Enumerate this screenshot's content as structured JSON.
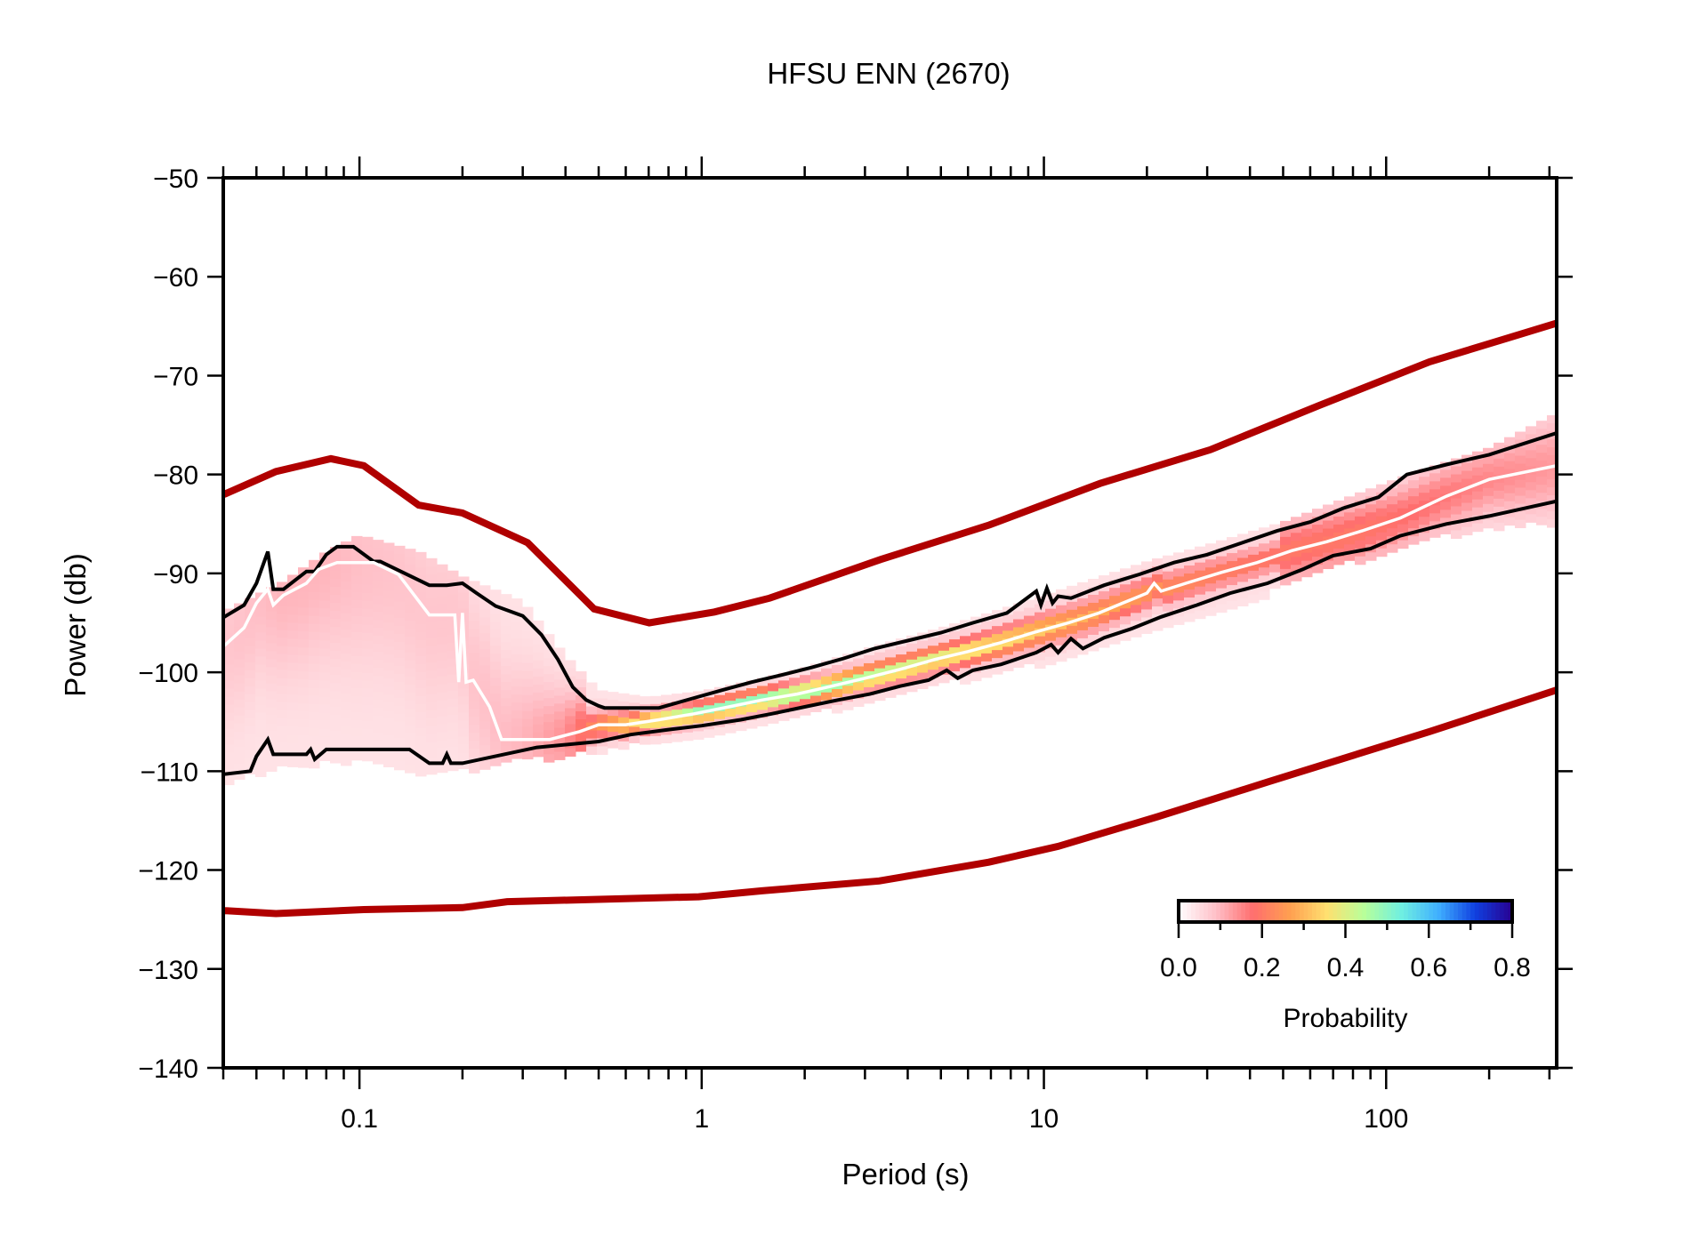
{
  "chart_data": {
    "type": "heatmap",
    "title": "HFSU ENN (2670)",
    "xlabel": "Period (s)",
    "ylabel": "Power (db)",
    "xscale": "log",
    "xlim": [
      0.04,
      315
    ],
    "ylim": [
      -140,
      -50
    ],
    "grid": false,
    "x_ticks": [
      {
        "value": 0.1,
        "label": "0.1"
      },
      {
        "value": 1,
        "label": "1"
      },
      {
        "value": 10,
        "label": "10"
      },
      {
        "value": 100,
        "label": "100"
      }
    ],
    "y_ticks": [
      {
        "value": -50,
        "label": "−50"
      },
      {
        "value": -60,
        "label": "−60"
      },
      {
        "value": -70,
        "label": "−70"
      },
      {
        "value": -80,
        "label": "−80"
      },
      {
        "value": -90,
        "label": "−90"
      },
      {
        "value": -100,
        "label": "−100"
      },
      {
        "value": -110,
        "label": "−110"
      },
      {
        "value": -120,
        "label": "−120"
      },
      {
        "value": -130,
        "label": "−130"
      },
      {
        "value": -140,
        "label": "−140"
      }
    ],
    "colorbar": {
      "label": "Probability",
      "range": [
        0.0,
        0.8
      ],
      "ticks": [
        {
          "value": 0.0,
          "label": "0.0"
        },
        {
          "value": 0.2,
          "label": "0.2"
        },
        {
          "value": 0.4,
          "label": "0.4"
        },
        {
          "value": 0.6,
          "label": "0.6"
        },
        {
          "value": 0.8,
          "label": "0.8"
        }
      ],
      "colors": [
        "#ffffff",
        "#ffc0c8",
        "#ff6e6e",
        "#ff9f50",
        "#ffe070",
        "#b8ff9a",
        "#70f0e0",
        "#40b0ff",
        "#1040e0",
        "#280090"
      ],
      "placement": "bottom-right"
    },
    "series": [
      {
        "name": "NHNM",
        "color": "#b00000",
        "x": [
          0.0403,
          0.057,
          0.0825,
          0.103,
          0.149,
          0.2,
          0.31,
          0.485,
          0.703,
          1.09,
          1.58,
          3.33,
          6.93,
          14.6,
          30.6,
          63.9,
          134,
          315
        ],
        "y": [
          -82.0,
          -79.7,
          -78.4,
          -79.1,
          -83.1,
          -83.9,
          -86.9,
          -93.6,
          -95.0,
          -93.9,
          -92.5,
          -88.6,
          -85.1,
          -80.9,
          -77.5,
          -73.0,
          -68.6,
          -64.7
        ]
      },
      {
        "name": "NLNM",
        "color": "#b00000",
        "x": [
          0.0403,
          0.057,
          0.103,
          0.2,
          0.27,
          0.98,
          1.5,
          3.3,
          6.9,
          11,
          21.5,
          45,
          134,
          315
        ],
        "y": [
          -124.1,
          -124.4,
          -124.0,
          -123.8,
          -123.2,
          -122.7,
          -122.1,
          -121.1,
          -119.2,
          -117.6,
          -114.6,
          -111.1,
          -106.0,
          -101.8
        ]
      },
      {
        "name": "upper-percentile",
        "color": "#000000",
        "x": [
          0.0403,
          0.046,
          0.05,
          0.054,
          0.056,
          0.06,
          0.07,
          0.074,
          0.08,
          0.086,
          0.096,
          0.11,
          0.115,
          0.16,
          0.18,
          0.2,
          0.22,
          0.25,
          0.3,
          0.34,
          0.38,
          0.42,
          0.46,
          0.5,
          0.52,
          0.62,
          0.75,
          0.95,
          1.15,
          1.4,
          1.7,
          2.1,
          2.6,
          3.2,
          4.0,
          5.0,
          6.2,
          7.8,
          9.5,
          9.8,
          10.2,
          10.6,
          11.0,
          12,
          15,
          19,
          24,
          30,
          38,
          48,
          60,
          75,
          95,
          115,
          150,
          200,
          315
        ],
        "y": [
          -94.4,
          -93.2,
          -91.0,
          -87.8,
          -91.6,
          -91.6,
          -89.8,
          -89.8,
          -88.1,
          -87.3,
          -87.3,
          -88.8,
          -88.8,
          -91.2,
          -91.2,
          -91.0,
          -92.0,
          -93.3,
          -94.3,
          -96.2,
          -98.7,
          -101.5,
          -102.8,
          -103.4,
          -103.6,
          -103.6,
          -103.6,
          -102.6,
          -101.8,
          -101.0,
          -100.3,
          -99.5,
          -98.6,
          -97.6,
          -96.8,
          -96.0,
          -95.0,
          -94.0,
          -91.8,
          -93.2,
          -91.5,
          -93.0,
          -92.3,
          -92.5,
          -91.2,
          -90.1,
          -88.9,
          -88.1,
          -86.9,
          -85.7,
          -84.8,
          -83.4,
          -82.3,
          -80.0,
          -79.0,
          -78.0,
          -75.8
        ]
      },
      {
        "name": "median",
        "color": "#ffffff",
        "x": [
          0.0403,
          0.046,
          0.05,
          0.054,
          0.056,
          0.06,
          0.07,
          0.076,
          0.086,
          0.11,
          0.13,
          0.16,
          0.19,
          0.195,
          0.2,
          0.205,
          0.215,
          0.24,
          0.26,
          0.28,
          0.36,
          0.44,
          0.5,
          0.6,
          0.75,
          0.95,
          1.2,
          1.5,
          1.9,
          2.4,
          3.0,
          3.8,
          4.8,
          6.0,
          7.5,
          9.3,
          11.8,
          14.5,
          17,
          20,
          21,
          22,
          26,
          33,
          42,
          53,
          67,
          85,
          110,
          150,
          200,
          315
        ],
        "y": [
          -97.3,
          -95.5,
          -93.0,
          -91.6,
          -93.2,
          -92.2,
          -91.0,
          -89.6,
          -88.9,
          -88.9,
          -90.1,
          -94.2,
          -94.2,
          -101.0,
          -94.0,
          -101.0,
          -100.8,
          -103.5,
          -106.8,
          -106.8,
          -106.8,
          -106.0,
          -105.3,
          -105.3,
          -104.8,
          -104.2,
          -103.5,
          -102.8,
          -102.2,
          -101.4,
          -100.6,
          -99.7,
          -98.7,
          -97.9,
          -97.0,
          -96.0,
          -95.0,
          -94.0,
          -93.0,
          -92.0,
          -91.0,
          -91.8,
          -91.0,
          -89.9,
          -88.9,
          -87.7,
          -86.8,
          -85.7,
          -84.4,
          -82.2,
          -80.5,
          -79.1
        ]
      },
      {
        "name": "lower-percentile",
        "color": "#000000",
        "x": [
          0.0403,
          0.048,
          0.05,
          0.054,
          0.056,
          0.06,
          0.07,
          0.072,
          0.074,
          0.08,
          0.14,
          0.16,
          0.175,
          0.18,
          0.185,
          0.2,
          0.33,
          0.5,
          0.62,
          0.8,
          1.0,
          1.3,
          1.6,
          2.0,
          2.5,
          3.1,
          3.8,
          4.6,
          5.2,
          5.6,
          6.2,
          7.5,
          9.5,
          10.5,
          11,
          12,
          13,
          15,
          18,
          22,
          28,
          35,
          45,
          57,
          70,
          90,
          110,
          150,
          200,
          315
        ],
        "y": [
          -110.3,
          -110.0,
          -108.5,
          -106.8,
          -108.3,
          -108.3,
          -108.3,
          -107.8,
          -108.8,
          -107.8,
          -107.8,
          -109.2,
          -109.2,
          -108.3,
          -109.2,
          -109.2,
          -107.6,
          -107.0,
          -106.3,
          -105.8,
          -105.4,
          -104.8,
          -104.2,
          -103.5,
          -102.8,
          -102.2,
          -101.4,
          -100.8,
          -99.8,
          -100.6,
          -99.8,
          -99.2,
          -98.0,
          -97.2,
          -98.0,
          -96.6,
          -97.6,
          -96.5,
          -95.6,
          -94.4,
          -93.2,
          -92.0,
          -91.0,
          -89.6,
          -88.2,
          -87.5,
          -86.2,
          -85.0,
          -84.2,
          -82.7
        ]
      }
    ],
    "density_band": {
      "description": "Probability density cloud, broad pink at short periods, narrowing into a bright band from ~0.5 s to long periods",
      "x": [
        0.0403,
        0.06,
        0.08,
        0.1,
        0.15,
        0.2,
        0.3,
        0.4,
        0.5,
        0.7,
        1,
        1.5,
        2,
        3,
        5,
        8,
        12,
        20,
        30,
        50,
        80,
        120,
        200,
        315
      ],
      "y_top": [
        -94.5,
        -91.5,
        -88.5,
        -86.8,
        -88.5,
        -91.0,
        -93.5,
        -99.0,
        -102.5,
        -103.2,
        -102.6,
        -101.3,
        -100.2,
        -98.3,
        -96.2,
        -94.0,
        -92.0,
        -89.5,
        -87.8,
        -85.5,
        -82.8,
        -80.5,
        -78.0,
        -74.5
      ],
      "y_bottom": [
        -110.3,
        -108.8,
        -108.3,
        -108.3,
        -109.2,
        -109.2,
        -108.0,
        -107.6,
        -107.2,
        -106.2,
        -105.4,
        -104.6,
        -103.6,
        -102.2,
        -100.3,
        -99.0,
        -97.5,
        -95.2,
        -93.4,
        -90.6,
        -88.0,
        -86.0,
        -84.5,
        -84.0
      ],
      "peak_probability": [
        0.08,
        0.1,
        0.1,
        0.09,
        0.08,
        0.08,
        0.1,
        0.14,
        0.25,
        0.4,
        0.5,
        0.5,
        0.48,
        0.45,
        0.4,
        0.35,
        0.3,
        0.25,
        0.22,
        0.2,
        0.2,
        0.18,
        0.15,
        0.13
      ]
    }
  }
}
